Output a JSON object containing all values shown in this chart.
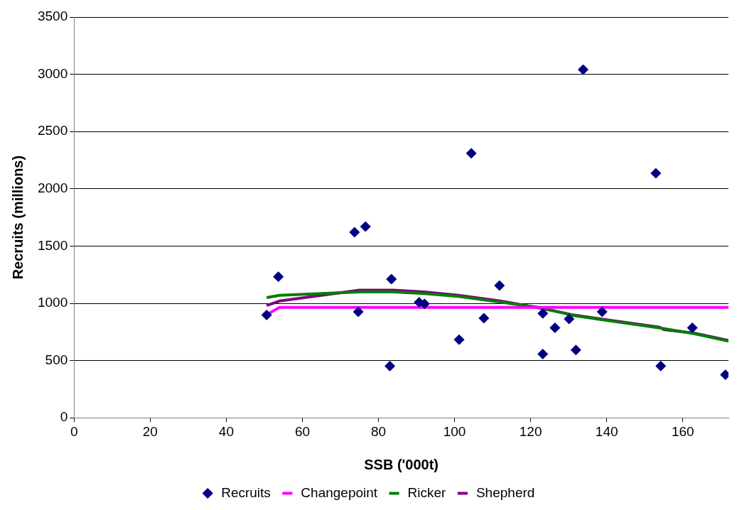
{
  "chart_data": {
    "type": "scatter",
    "xlabel": "SSB ('000t)",
    "ylabel": "Recruits (millions)",
    "xlim": [
      0,
      172
    ],
    "xticks": [
      0,
      20,
      40,
      60,
      80,
      100,
      120,
      140,
      160
    ],
    "ylim": [
      0,
      3500
    ],
    "yticks": [
      0,
      500,
      1000,
      1500,
      2000,
      2500,
      3000,
      3500
    ],
    "grid": "y",
    "legend": "bottom",
    "series": [
      {
        "name": "Recruits",
        "marker": "diamond",
        "color": "#000080",
        "x": [
          50.6,
          53.7,
          73.7,
          74.7,
          76.6,
          83.0,
          83.4,
          90.7,
          92.1,
          101.2,
          104.4,
          107.7,
          111.8,
          123.2,
          123.2,
          126.4,
          130.1,
          131.9,
          133.8,
          138.8,
          152.9,
          154.2,
          162.5,
          171.2
        ],
        "values": [
          898,
          1232,
          1621,
          926,
          1670,
          452,
          1211,
          1009,
          995,
          682,
          2310,
          870,
          1155,
          912,
          557,
          786,
          863,
          592,
          3041,
          926,
          2136,
          452,
          786,
          376
        ]
      },
      {
        "name": "Changepoint",
        "type": "line",
        "marker": "none",
        "color": "#ff00ff",
        "x": [
          50.6,
          54,
          172
        ],
        "values": [
          900,
          965,
          965
        ]
      },
      {
        "name": "Ricker",
        "type": "line",
        "marker": "none",
        "color": "#007f00",
        "x": [
          50.6,
          54,
          75,
          84,
          92,
          101,
          112,
          123,
          131,
          139,
          154,
          163,
          172
        ],
        "values": [
          1050,
          1070,
          1100,
          1100,
          1085,
          1060,
          1010,
          960,
          895,
          855,
          785,
          735,
          670
        ]
      },
      {
        "name": "Shepherd",
        "type": "line",
        "marker": "none",
        "color": "#800080",
        "x": [
          50.6,
          54,
          75,
          84,
          92,
          101,
          112,
          123,
          131,
          139,
          154,
          155,
          163,
          172
        ],
        "values": [
          980,
          1020,
          1115,
          1115,
          1100,
          1070,
          1020,
          955,
          900,
          860,
          790,
          770,
          740,
          675
        ]
      }
    ]
  }
}
